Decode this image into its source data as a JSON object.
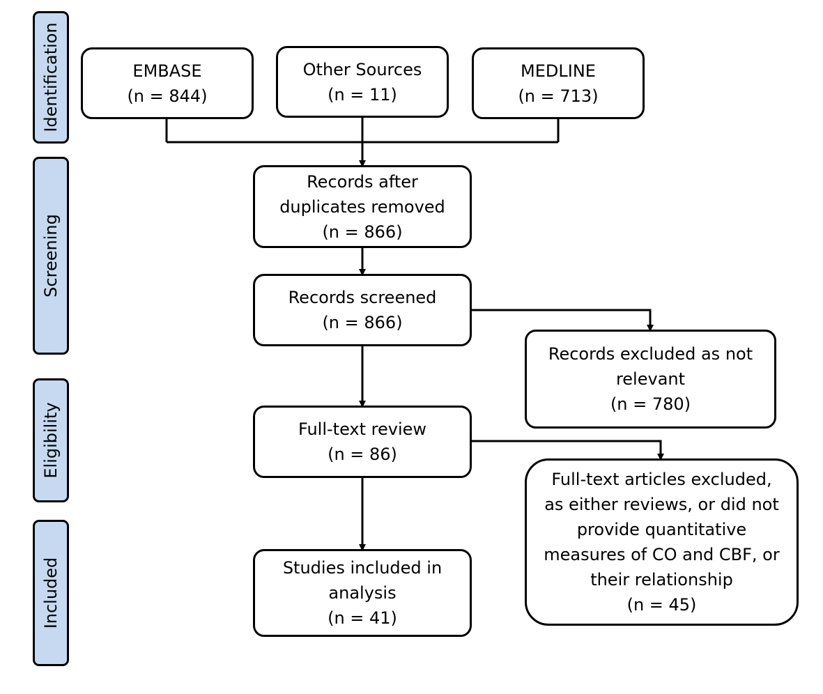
{
  "phases": {
    "identification": "Identification",
    "screening": "Screening",
    "eligibility": "Eligibility",
    "included": "Included"
  },
  "boxes": {
    "embase": {
      "title": "EMBASE",
      "count": "(n = 844)"
    },
    "other_sources": {
      "title": "Other Sources",
      "count": "(n = 11)"
    },
    "medline": {
      "title": "MEDLINE",
      "count": "(n = 713)"
    },
    "duplicates_removed": {
      "lines": [
        "Records after",
        "duplicates removed"
      ],
      "count": "(n = 866)"
    },
    "records_screened": {
      "title": "Records screened",
      "count": "(n = 866)"
    },
    "records_excluded": {
      "lines": [
        "Records excluded as not",
        "relevant"
      ],
      "count": "(n = 780)"
    },
    "full_text_review": {
      "title": "Full-text review",
      "count": "(n = 86)"
    },
    "full_text_excluded": {
      "lines": [
        "Full-text articles excluded,",
        "as either reviews, or did not",
        "provide quantitative",
        "measures of CO and CBF, or",
        "their relationship"
      ],
      "count": "(n = 45)"
    },
    "studies_included": {
      "lines": [
        "Studies included in",
        "analysis"
      ],
      "count": "(n = 41)"
    }
  }
}
